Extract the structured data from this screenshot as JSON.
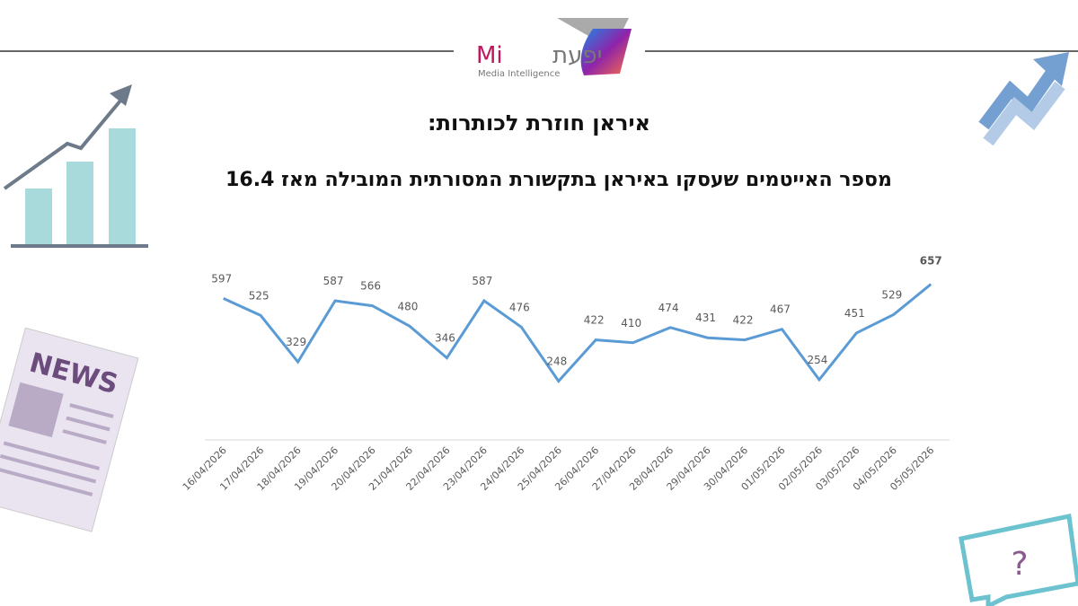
{
  "header": {
    "logo_latin": "Mi",
    "logo_hebrew": "יפעת",
    "logo_sub": "Media Intelligence"
  },
  "decoration": {
    "newspaper": "NEWS"
  },
  "chart_data": {
    "type": "line",
    "title": "איראן חוזרת לכותרות:",
    "subtitle": "מספר האייטמים שעסקו באיראן בתקשורת המסורתית המובילה מאז 16.4",
    "categories": [
      "16/04/2026",
      "17/04/2026",
      "18/04/2026",
      "19/04/2026",
      "20/04/2026",
      "21/04/2026",
      "22/04/2026",
      "23/04/2026",
      "24/04/2026",
      "25/04/2026",
      "26/04/2026",
      "27/04/2026",
      "28/04/2026",
      "29/04/2026",
      "30/04/2026",
      "01/05/2026",
      "02/05/2026",
      "03/05/2026",
      "04/05/2026",
      "05/05/2026"
    ],
    "values": [
      597,
      525,
      329,
      587,
      566,
      480,
      346,
      587,
      476,
      248,
      422,
      410,
      474,
      431,
      422,
      467,
      254,
      451,
      529,
      657
    ],
    "color": "#5b9bd5"
  }
}
